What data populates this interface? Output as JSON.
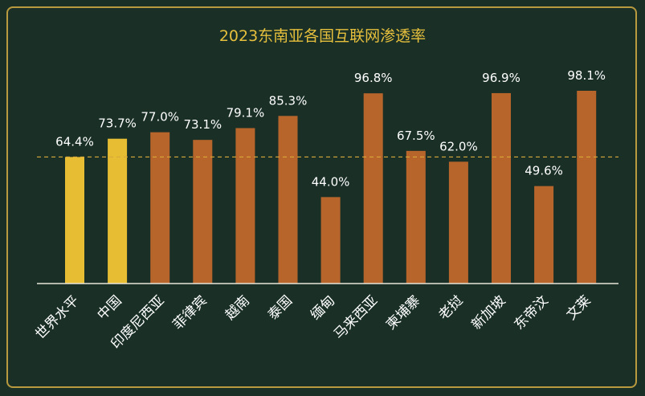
{
  "chart_data": {
    "type": "bar",
    "title": "2023东南亚各国互联网渗透率",
    "categories": [
      "世界水平",
      "中国",
      "印度尼西亚",
      "菲律宾",
      "越南",
      "泰国",
      "缅甸",
      "马来西亚",
      "柬埔寨",
      "老挝",
      "新加坡",
      "东帝汶",
      "文莱"
    ],
    "values": [
      64.4,
      73.7,
      77.0,
      73.1,
      79.1,
      85.3,
      44.0,
      96.8,
      67.5,
      62.0,
      96.9,
      49.6,
      98.1
    ],
    "value_labels": [
      "64.4%",
      "73.7%",
      "77.0%",
      "73.1%",
      "79.1%",
      "85.3%",
      "44.0%",
      "96.8%",
      "67.5%",
      "62.0%",
      "96.9%",
      "49.6%",
      "98.1%"
    ],
    "reference_line": 64.4,
    "highlight_color": "#e7be33",
    "bar_color": "#b8652c",
    "ylim": [
      0,
      100
    ],
    "grid": false,
    "unit": "%"
  }
}
